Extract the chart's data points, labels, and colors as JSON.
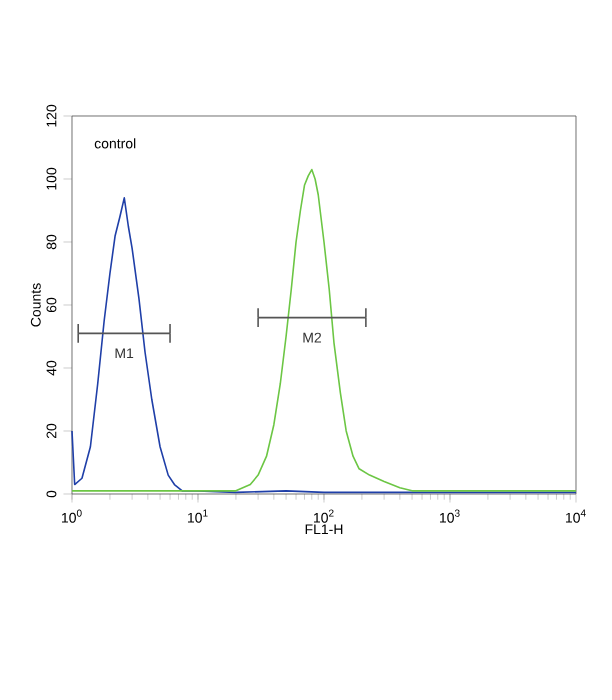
{
  "chart_data": {
    "type": "line",
    "xlabel": "FL1-H",
    "ylabel": "Counts",
    "log": "x",
    "grid": false,
    "xlim": [
      1,
      10000
    ],
    "xticks": [
      {
        "value": 1,
        "label": "10$^{0}$"
      },
      {
        "value": 10,
        "label": "10$^{1}$"
      },
      {
        "value": 100,
        "label": "10$^{2}$"
      },
      {
        "value": 1000,
        "label": "10$^{3}$"
      },
      {
        "value": 10000,
        "label": "10$^{4}$"
      }
    ],
    "ylim": [
      0,
      120
    ],
    "yticks": [
      0,
      20,
      40,
      60,
      80,
      100,
      120
    ],
    "annotations": [
      "control"
    ],
    "series": [
      {
        "color": "#1f3fa8",
        "x": [
          1.0,
          1.05,
          1.2,
          1.4,
          1.6,
          1.8,
          2.0,
          2.2,
          2.4,
          2.6,
          2.8,
          3.0,
          3.4,
          3.8,
          4.3,
          5.0,
          5.8,
          6.5,
          7.5,
          10,
          20,
          50,
          100,
          1000,
          10000
        ],
        "values": [
          20,
          3,
          5,
          15,
          35,
          55,
          70,
          82,
          88,
          94,
          85,
          78,
          62,
          45,
          30,
          15,
          6,
          3,
          1,
          1,
          0.5,
          1,
          0.5,
          0.5,
          0.5
        ]
      },
      {
        "color": "#6cc644",
        "x": [
          1.0,
          10,
          20,
          26,
          30,
          35,
          40,
          45,
          50,
          55,
          60,
          65,
          70,
          75,
          80,
          85,
          90,
          100,
          110,
          120,
          135,
          150,
          170,
          190,
          230,
          300,
          400,
          500,
          1000,
          10000
        ],
        "values": [
          1,
          1,
          1,
          3,
          6,
          12,
          22,
          35,
          50,
          65,
          80,
          90,
          98,
          101,
          103,
          100,
          95,
          80,
          65,
          48,
          32,
          20,
          12,
          8,
          6,
          4,
          2,
          1,
          1,
          1
        ]
      },
      {
        "name": "M1",
        "color": "#555555",
        "x": [
          1.12,
          6.0
        ],
        "values": [
          51,
          51
        ],
        "errors": [
          3,
          3
        ]
      },
      {
        "name": "M2",
        "color": "#555555",
        "x": [
          30,
          215
        ],
        "values": [
          56,
          56
        ],
        "errors": [
          3,
          3
        ]
      }
    ]
  }
}
